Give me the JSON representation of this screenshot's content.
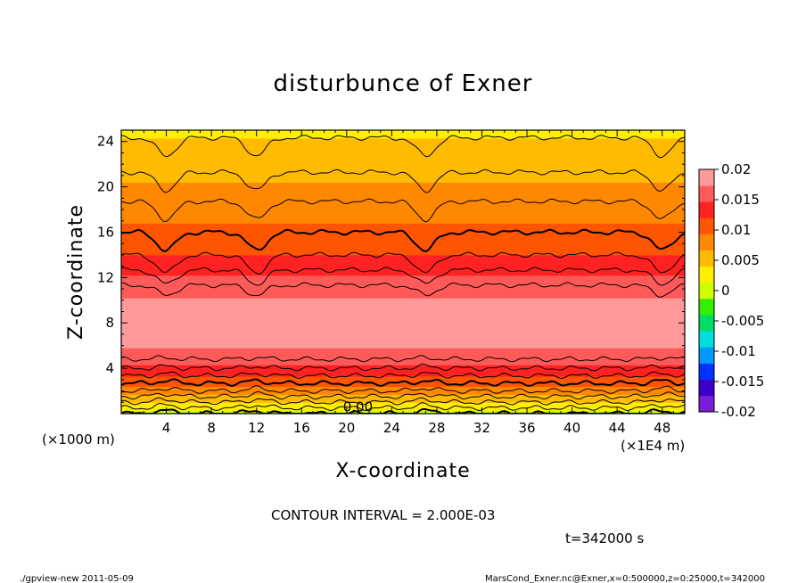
{
  "chart_data": {
    "type": "heatmap",
    "title": "disturbunce of Exner",
    "xlabel": "X-coordinate",
    "ylabel": "Z-coordinate",
    "x_unit_left": "(×1000 m)",
    "x_unit_right": "(×1E4 m)",
    "xlim": [
      0,
      50
    ],
    "ylim": [
      0,
      25
    ],
    "x_ticks": [
      "4",
      "8",
      "12",
      "16",
      "20",
      "24",
      "28",
      "32",
      "36",
      "40",
      "44",
      "48"
    ],
    "y_ticks": [
      "4",
      "8",
      "12",
      "16",
      "20",
      "24"
    ],
    "colorbar_ticks": [
      "0.02",
      "0.015",
      "0.01",
      "0.005",
      "0",
      "-0.005",
      "-0.01",
      "-0.015",
      "-0.02"
    ],
    "colorbar_range": [
      -0.02,
      0.02
    ],
    "contour_label": "0.00",
    "contour_interval": "CONTOUR INTERVAL = 2.000E-03",
    "time_label": "t=342000 s",
    "vertical_profile": {
      "z": [
        0,
        1,
        2,
        3,
        4,
        5,
        6,
        7,
        8,
        9,
        10,
        11,
        12,
        13,
        14,
        15,
        16,
        17,
        18,
        19,
        20,
        21,
        22,
        23,
        24,
        25
      ],
      "value": [
        0.0,
        0.004,
        0.008,
        0.011,
        0.014,
        0.0165,
        0.0175,
        0.018,
        0.018,
        0.018,
        0.0175,
        0.0165,
        0.015,
        0.0135,
        0.012,
        0.011,
        0.01,
        0.0092,
        0.0085,
        0.0078,
        0.007,
        0.0062,
        0.0055,
        0.0048,
        0.0042,
        0.0036
      ]
    },
    "surface_dip": {
      "x": [
        4,
        12,
        27,
        48
      ],
      "note": "local lowering of contours"
    }
  },
  "footer": {
    "left": "./gpview-new   2011-05-09",
    "right": "MarsCond_Exner.nc@Exner,x=0:500000,z=0:25000,t=342000"
  },
  "colors": {
    "palette": [
      "#7a1cd8",
      "#3d00c8",
      "#0033ff",
      "#0099ff",
      "#00dddd",
      "#00dd66",
      "#33ee00",
      "#ccff00",
      "#ffee00",
      "#ffbb00",
      "#ff8800",
      "#ff5500",
      "#ff2222",
      "#ff5a5a",
      "#ff9a9a"
    ]
  }
}
